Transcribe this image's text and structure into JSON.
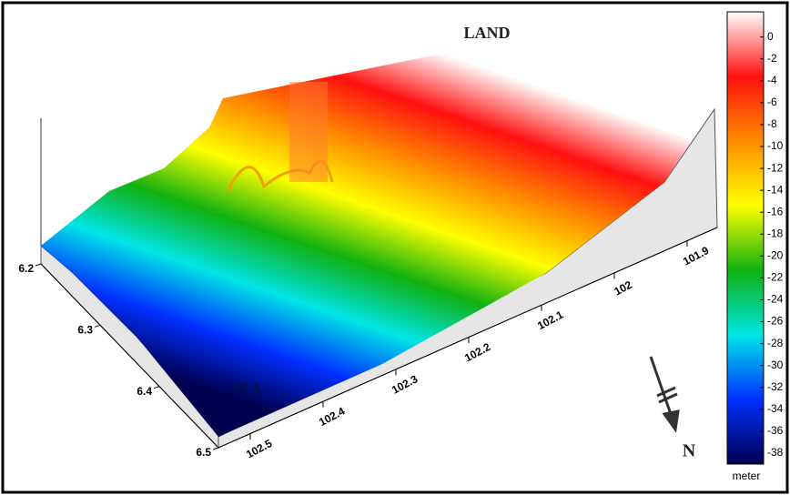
{
  "chart_data": {
    "type": "surface",
    "annotations": {
      "land": "LAND",
      "sea": "SEA",
      "north": "N"
    },
    "colorbar": {
      "label": "meter",
      "lim": [
        -39,
        2.3
      ],
      "ticks": [
        0,
        -2,
        -4,
        -6,
        -8,
        -10,
        -12,
        -14,
        -16,
        -18,
        -20,
        -22,
        -24,
        -26,
        -28,
        -30,
        -32,
        -34,
        -36,
        -38
      ],
      "colors": [
        "#ffffff",
        "#ff1010",
        "#ff8c00",
        "#ffff00",
        "#10b010",
        "#00e5e5",
        "#0030ff",
        "#000050"
      ]
    },
    "lat_ticks": [
      6.2,
      6.3,
      6.4,
      6.5
    ],
    "lon_ticks": [
      102.5,
      102.4,
      102.3,
      102.2,
      102.1,
      102,
      101.9
    ]
  }
}
